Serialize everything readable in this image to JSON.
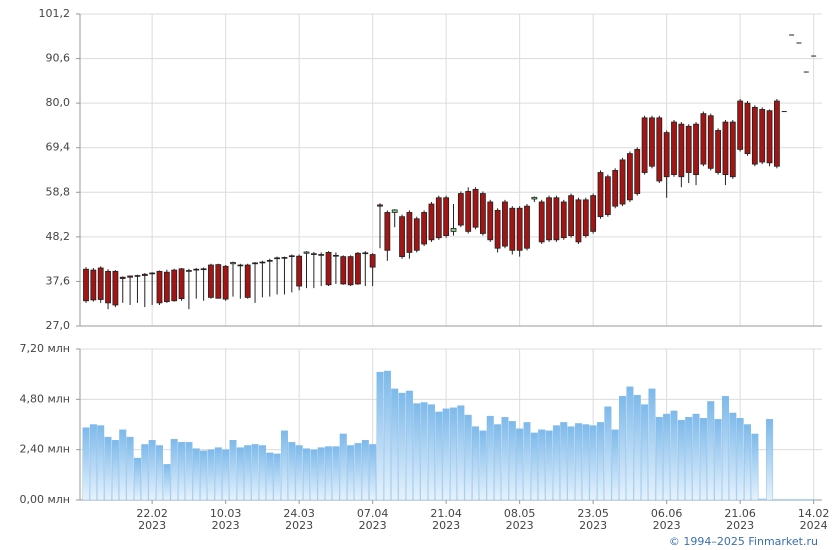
{
  "credit": "© 1994–2025 Finmarket.ru",
  "chart_data": [
    {
      "type": "candlestick",
      "up_color": "#7fcf7f",
      "down_color": "#a31515",
      "grid": true,
      "ylim": [
        27.0,
        101.2
      ],
      "yticks": [
        {
          "value": 27.0,
          "label": "27,0"
        },
        {
          "value": 37.6,
          "label": "37,6"
        },
        {
          "value": 48.2,
          "label": "48,2"
        },
        {
          "value": 58.8,
          "label": "58,8"
        },
        {
          "value": 69.4,
          "label": "69,4"
        },
        {
          "value": 80.0,
          "label": "80,0"
        },
        {
          "value": 90.6,
          "label": "90,6"
        },
        {
          "value": 101.2,
          "label": "101,2"
        }
      ],
      "open": [
        40.5,
        40.3,
        40.8,
        40.0,
        40.0,
        38.6,
        38.9,
        39.0,
        39.3,
        39.6,
        40.0,
        39.8,
        40.3,
        40.6,
        40.2,
        40.5,
        40.6,
        41.5,
        41.6,
        41.2,
        41.8,
        41.5,
        41.5,
        42.0,
        42.2,
        42.6,
        43.2,
        43.3,
        43.7,
        43.6,
        44.3,
        44.2,
        44.0,
        44.5,
        43.8,
        43.5,
        43.5,
        44.3,
        44.4,
        44.0,
        55.8,
        54.0,
        54.0,
        53.0,
        54.0,
        52.5,
        54.0,
        56.0,
        57.5,
        57.5,
        49.5,
        58.5,
        59.0,
        59.5,
        58.5,
        56.5,
        54.5,
        56.5,
        55.0,
        55.0,
        55.5,
        57.2,
        56.5,
        57.5,
        57.5,
        56.5,
        58.0,
        57.0,
        57.0,
        58.0,
        63.5,
        62.5,
        64.0,
        66.5,
        68.0,
        69.0,
        76.5,
        76.5,
        76.5,
        73.0,
        75.5,
        75.0,
        74.5,
        75.0,
        77.5,
        77.0,
        73.5,
        75.5,
        75.5,
        80.5,
        80.0,
        79.0,
        78.5,
        78.2,
        80.5,
        78.0,
        96.2,
        94.3,
        87.4,
        91.2
      ],
      "high": [
        41.0,
        40.8,
        41.2,
        40.5,
        40.3,
        38.8,
        39.0,
        39.2,
        39.6,
        39.8,
        40.2,
        40.4,
        40.6,
        40.8,
        40.6,
        40.8,
        40.9,
        41.8,
        41.8,
        41.5,
        42.3,
        41.8,
        41.8,
        42.2,
        42.5,
        43.0,
        43.5,
        43.5,
        44.0,
        44.0,
        44.8,
        44.6,
        44.5,
        44.8,
        44.5,
        43.8,
        43.8,
        44.6,
        44.8,
        44.3,
        56.2,
        54.5,
        54.8,
        53.5,
        54.5,
        53.0,
        54.5,
        56.5,
        58.0,
        58.0,
        56.0,
        59.0,
        60.0,
        60.0,
        59.0,
        57.0,
        55.0,
        57.0,
        55.5,
        55.5,
        56.0,
        57.8,
        57.0,
        58.0,
        58.0,
        57.0,
        58.5,
        57.5,
        57.5,
        58.5,
        64.0,
        63.0,
        64.5,
        67.0,
        68.5,
        69.5,
        77.0,
        77.0,
        77.0,
        73.5,
        76.0,
        75.5,
        75.0,
        75.5,
        78.0,
        77.5,
        74.0,
        76.0,
        76.0,
        81.0,
        80.5,
        79.5,
        79.0,
        78.5,
        81.0,
        78.0,
        96.2,
        94.3,
        87.4,
        91.2
      ],
      "low": [
        32.5,
        32.8,
        32.5,
        31.0,
        31.5,
        32.5,
        32.0,
        32.5,
        31.5,
        32.0,
        32.0,
        32.5,
        32.8,
        33.0,
        31.0,
        33.5,
        33.0,
        33.5,
        33.5,
        33.0,
        34.0,
        33.5,
        33.5,
        32.5,
        33.8,
        34.0,
        34.5,
        34.5,
        35.0,
        35.5,
        36.0,
        36.0,
        36.5,
        36.5,
        37.0,
        36.8,
        36.5,
        36.8,
        36.5,
        36.5,
        45.5,
        42.5,
        50.5,
        43.0,
        43.0,
        44.5,
        46.0,
        47.0,
        47.5,
        48.0,
        48.5,
        50.5,
        49.0,
        50.0,
        48.5,
        47.0,
        44.5,
        45.5,
        44.0,
        43.5,
        45.0,
        56.5,
        46.5,
        47.0,
        47.0,
        47.5,
        48.0,
        46.5,
        48.0,
        49.0,
        52.5,
        53.0,
        55.0,
        55.5,
        56.5,
        58.0,
        63.0,
        64.5,
        61.0,
        57.5,
        62.5,
        60.0,
        61.0,
        60.5,
        65.0,
        64.0,
        63.0,
        60.5,
        62.0,
        68.5,
        67.5,
        65.0,
        65.5,
        65.0,
        64.5,
        78.0,
        96.2,
        94.3,
        87.4,
        91.2
      ],
      "close": [
        33.0,
        33.2,
        33.3,
        32.5,
        32.0,
        38.3,
        38.6,
        38.8,
        39.0,
        39.4,
        32.5,
        32.8,
        33.0,
        33.5,
        40.0,
        40.3,
        40.4,
        33.8,
        33.6,
        33.4,
        42.1,
        41.3,
        33.8,
        41.8,
        42.0,
        42.4,
        43.0,
        43.1,
        43.5,
        36.5,
        44.6,
        44.0,
        43.8,
        36.8,
        43.6,
        37.0,
        36.8,
        37.0,
        44.2,
        41.0,
        55.5,
        45.0,
        54.6,
        43.5,
        44.5,
        45.0,
        46.5,
        47.5,
        48.0,
        48.5,
        50.2,
        51.0,
        49.5,
        50.5,
        49.0,
        47.5,
        45.5,
        46.0,
        45.0,
        45.0,
        45.5,
        57.6,
        47.0,
        47.5,
        47.5,
        48.0,
        48.5,
        47.0,
        48.5,
        49.5,
        53.0,
        53.5,
        55.5,
        56.0,
        57.0,
        58.5,
        63.5,
        65.0,
        61.5,
        62.5,
        63.0,
        62.5,
        63.5,
        63.0,
        65.5,
        64.5,
        63.5,
        63.0,
        62.5,
        69.0,
        68.0,
        65.5,
        66.0,
        65.8,
        65.0,
        78.0,
        96.2,
        94.3,
        87.4,
        91.2
      ]
    },
    {
      "type": "bar",
      "color": "#7db9ea",
      "grid": true,
      "ylim": [
        0,
        7.2
      ],
      "yticks": [
        {
          "value": 0,
          "label": "0,00 млн"
        },
        {
          "value": 2.4,
          "label": "2,40 млн"
        },
        {
          "value": 4.8,
          "label": "4,80 млн"
        },
        {
          "value": 7.2,
          "label": "7,20 млн"
        }
      ],
      "categories": [
        null,
        null,
        null,
        null,
        null,
        null,
        null,
        null,
        null,
        [
          "22.02",
          "2023"
        ],
        null,
        null,
        null,
        null,
        null,
        null,
        null,
        null,
        null,
        [
          "10.03",
          "2023"
        ],
        null,
        null,
        null,
        null,
        null,
        null,
        null,
        null,
        null,
        [
          "24.03",
          "2023"
        ],
        null,
        null,
        null,
        null,
        null,
        null,
        null,
        null,
        null,
        [
          "07.04",
          "2023"
        ],
        null,
        null,
        null,
        null,
        null,
        null,
        null,
        null,
        null,
        [
          "21.04",
          "2023"
        ],
        null,
        null,
        null,
        null,
        null,
        null,
        null,
        null,
        null,
        [
          "08.05",
          "2023"
        ],
        null,
        null,
        null,
        null,
        null,
        null,
        null,
        null,
        null,
        [
          "23.05",
          "2023"
        ],
        null,
        null,
        null,
        null,
        null,
        null,
        null,
        null,
        null,
        [
          "06.06",
          "2023"
        ],
        null,
        null,
        null,
        null,
        null,
        null,
        null,
        null,
        null,
        [
          "21.06",
          "2023"
        ],
        null,
        null,
        null,
        null,
        null,
        null,
        null,
        null,
        null,
        [
          "14.02",
          "2024"
        ]
      ],
      "values": [
        3.45,
        3.6,
        3.55,
        3.0,
        2.85,
        3.35,
        3.0,
        2.0,
        2.65,
        2.85,
        2.6,
        1.7,
        2.9,
        2.75,
        2.75,
        2.45,
        2.35,
        2.4,
        2.5,
        2.4,
        2.85,
        2.5,
        2.6,
        2.65,
        2.6,
        2.25,
        2.2,
        3.3,
        2.75,
        2.6,
        2.45,
        2.4,
        2.5,
        2.55,
        2.55,
        3.15,
        2.6,
        2.7,
        2.85,
        2.65,
        6.1,
        6.15,
        5.3,
        5.1,
        5.2,
        4.6,
        4.65,
        4.55,
        4.2,
        4.35,
        4.4,
        4.5,
        4.05,
        3.5,
        3.3,
        4.0,
        3.6,
        3.95,
        3.75,
        3.4,
        3.7,
        3.2,
        3.35,
        3.3,
        3.55,
        3.7,
        3.5,
        3.65,
        3.6,
        3.55,
        3.7,
        4.45,
        3.35,
        4.95,
        5.4,
        5.0,
        4.55,
        5.3,
        3.95,
        4.1,
        4.25,
        3.8,
        3.95,
        4.1,
        3.9,
        4.7,
        3.85,
        4.95,
        4.15,
        3.9,
        3.6,
        3.15,
        0.05,
        3.85,
        0.02,
        0.02,
        0.02,
        0.02,
        0.02,
        0.02
      ]
    }
  ]
}
